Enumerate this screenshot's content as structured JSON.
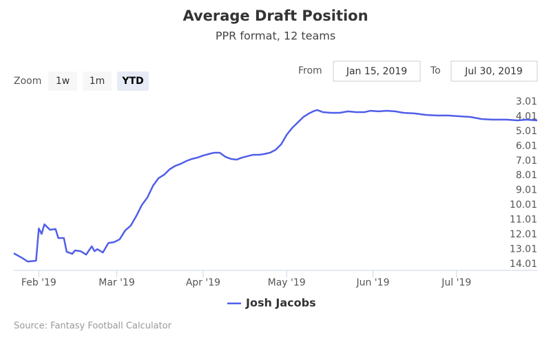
{
  "chart_data": {
    "type": "line",
    "title": "Average Draft Position",
    "subtitle": "PPR format, 12 teams",
    "range_selector": {
      "label": "Zoom",
      "buttons": [
        "1w",
        "1m",
        "YTD"
      ],
      "selected": 2,
      "from_label": "From",
      "from_value": "Jan 15, 2019",
      "to_label": "To",
      "to_value": "Jul 30, 2019"
    },
    "x": [
      "2019-01-23",
      "2019-01-26",
      "2019-01-28",
      "2019-01-31",
      "2019-02-01",
      "2019-02-02",
      "2019-02-03",
      "2019-02-05",
      "2019-02-07",
      "2019-02-08",
      "2019-02-10",
      "2019-02-11",
      "2019-02-13",
      "2019-02-14",
      "2019-02-16",
      "2019-02-18",
      "2019-02-20",
      "2019-02-21",
      "2019-02-22",
      "2019-02-24",
      "2019-02-26",
      "2019-02-28",
      "2019-03-02",
      "2019-03-04",
      "2019-03-06",
      "2019-03-08",
      "2019-03-10",
      "2019-03-12",
      "2019-03-14",
      "2019-03-16",
      "2019-03-18",
      "2019-03-20",
      "2019-03-22",
      "2019-03-24",
      "2019-03-26",
      "2019-03-28",
      "2019-03-30",
      "2019-04-01",
      "2019-04-03",
      "2019-04-05",
      "2019-04-07",
      "2019-04-09",
      "2019-04-11",
      "2019-04-13",
      "2019-04-15",
      "2019-04-17",
      "2019-04-19",
      "2019-04-21",
      "2019-04-23",
      "2019-04-25",
      "2019-04-27",
      "2019-04-29",
      "2019-05-01",
      "2019-05-03",
      "2019-05-05",
      "2019-05-07",
      "2019-05-09",
      "2019-05-11",
      "2019-05-12",
      "2019-05-14",
      "2019-05-17",
      "2019-05-20",
      "2019-05-23",
      "2019-05-26",
      "2019-05-29",
      "2019-05-31",
      "2019-06-03",
      "2019-06-06",
      "2019-06-09",
      "2019-06-12",
      "2019-06-16",
      "2019-06-20",
      "2019-06-24",
      "2019-06-28",
      "2019-07-02",
      "2019-07-06",
      "2019-07-10",
      "2019-07-14",
      "2019-07-19",
      "2019-07-23",
      "2019-07-26",
      "2019-07-30"
    ],
    "series": [
      {
        "name": "Josh Jacobs",
        "color": "#4f5ee8",
        "values": [
          13.27,
          13.59,
          13.83,
          13.78,
          11.59,
          11.96,
          11.31,
          11.68,
          11.63,
          12.24,
          12.24,
          13.17,
          13.31,
          13.08,
          13.13,
          13.36,
          12.8,
          13.13,
          12.99,
          13.22,
          12.57,
          12.52,
          12.33,
          11.73,
          11.4,
          10.75,
          10.0,
          9.49,
          8.7,
          8.18,
          7.95,
          7.58,
          7.35,
          7.21,
          7.02,
          6.88,
          6.79,
          6.65,
          6.55,
          6.46,
          6.46,
          6.74,
          6.88,
          6.93,
          6.79,
          6.69,
          6.6,
          6.6,
          6.55,
          6.46,
          6.27,
          5.9,
          5.25,
          4.78,
          4.41,
          4.04,
          3.8,
          3.62,
          3.57,
          3.71,
          3.76,
          3.76,
          3.66,
          3.71,
          3.71,
          3.62,
          3.66,
          3.62,
          3.66,
          3.76,
          3.8,
          3.9,
          3.94,
          3.94,
          3.99,
          4.04,
          4.18,
          4.22,
          4.22,
          4.27,
          4.22,
          4.27
        ]
      }
    ],
    "xlim": [
      "2019-01-23",
      "2019-07-30"
    ],
    "xticks": [
      {
        "value": "2019-02-01",
        "label": "Feb '19"
      },
      {
        "value": "2019-03-01",
        "label": "Mar '19"
      },
      {
        "value": "2019-04-01",
        "label": "Apr '19"
      },
      {
        "value": "2019-05-01",
        "label": "May '19"
      },
      {
        "value": "2019-06-01",
        "label": "Jun '19"
      },
      {
        "value": "2019-07-01",
        "label": "Jul '19"
      }
    ],
    "ylim": [
      2.78,
      14.43
    ],
    "y_reversed": true,
    "yticks": [
      3.01,
      4.01,
      5.01,
      6.01,
      7.01,
      8.01,
      9.01,
      10.01,
      11.01,
      12.01,
      13.01,
      14.01
    ],
    "grid": false,
    "legend": "bottom",
    "credits": "Source: Fantasy Football Calculator"
  }
}
